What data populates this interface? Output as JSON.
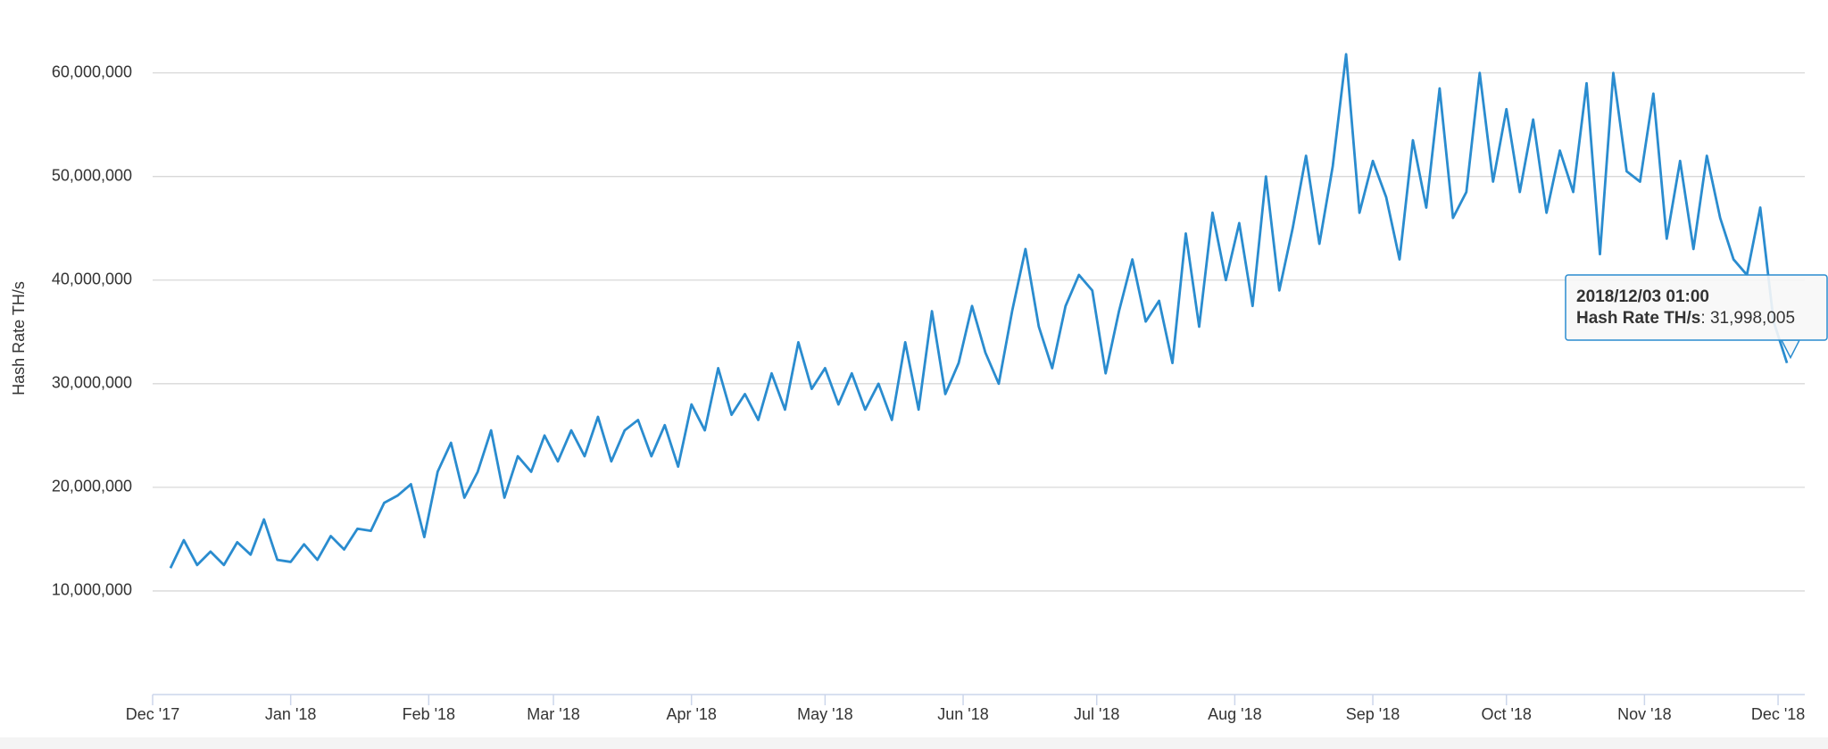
{
  "chart_data": {
    "type": "line",
    "y_label": "Hash Rate TH/s",
    "x": [
      "2017-12-05",
      "2017-12-08",
      "2017-12-11",
      "2017-12-14",
      "2017-12-17",
      "2017-12-20",
      "2017-12-23",
      "2017-12-26",
      "2017-12-29",
      "2018-01-01",
      "2018-01-04",
      "2018-01-07",
      "2018-01-10",
      "2018-01-13",
      "2018-01-16",
      "2018-01-19",
      "2018-01-22",
      "2018-01-25",
      "2018-01-28",
      "2018-01-31",
      "2018-02-03",
      "2018-02-06",
      "2018-02-09",
      "2018-02-12",
      "2018-02-15",
      "2018-02-18",
      "2018-02-21",
      "2018-02-24",
      "2018-02-27",
      "2018-03-02",
      "2018-03-05",
      "2018-03-08",
      "2018-03-11",
      "2018-03-14",
      "2018-03-17",
      "2018-03-20",
      "2018-03-23",
      "2018-03-26",
      "2018-03-29",
      "2018-04-01",
      "2018-04-04",
      "2018-04-07",
      "2018-04-10",
      "2018-04-13",
      "2018-04-16",
      "2018-04-19",
      "2018-04-22",
      "2018-04-25",
      "2018-04-28",
      "2018-05-01",
      "2018-05-04",
      "2018-05-07",
      "2018-05-10",
      "2018-05-13",
      "2018-05-16",
      "2018-05-19",
      "2018-05-22",
      "2018-05-25",
      "2018-05-28",
      "2018-05-31",
      "2018-06-03",
      "2018-06-06",
      "2018-06-09",
      "2018-06-12",
      "2018-06-15",
      "2018-06-18",
      "2018-06-21",
      "2018-06-24",
      "2018-06-27",
      "2018-06-30",
      "2018-07-03",
      "2018-07-06",
      "2018-07-09",
      "2018-07-12",
      "2018-07-15",
      "2018-07-18",
      "2018-07-21",
      "2018-07-24",
      "2018-07-27",
      "2018-07-30",
      "2018-08-02",
      "2018-08-05",
      "2018-08-08",
      "2018-08-11",
      "2018-08-14",
      "2018-08-17",
      "2018-08-20",
      "2018-08-23",
      "2018-08-26",
      "2018-08-29",
      "2018-09-01",
      "2018-09-04",
      "2018-09-07",
      "2018-09-10",
      "2018-09-13",
      "2018-09-16",
      "2018-09-19",
      "2018-09-22",
      "2018-09-25",
      "2018-09-28",
      "2018-10-01",
      "2018-10-04",
      "2018-10-07",
      "2018-10-10",
      "2018-10-13",
      "2018-10-16",
      "2018-10-19",
      "2018-10-22",
      "2018-10-25",
      "2018-10-28",
      "2018-10-31",
      "2018-11-03",
      "2018-11-06",
      "2018-11-09",
      "2018-11-12",
      "2018-11-15",
      "2018-11-18",
      "2018-11-21",
      "2018-11-24",
      "2018-11-27",
      "2018-11-30",
      "2018-12-03"
    ],
    "series": [
      {
        "name": "Hash Rate TH/s",
        "color": "#2a8ccf",
        "values": [
          12200000,
          14900000,
          12500000,
          13800000,
          12500000,
          14700000,
          13500000,
          16900000,
          13000000,
          12800000,
          14500000,
          13000000,
          15300000,
          14000000,
          16000000,
          15800000,
          18500000,
          19200000,
          20300000,
          15200000,
          21500000,
          24300000,
          19000000,
          21500000,
          25500000,
          19000000,
          23000000,
          21500000,
          25000000,
          22500000,
          25500000,
          23000000,
          26800000,
          22500000,
          25500000,
          26500000,
          23000000,
          26000000,
          22000000,
          28000000,
          25500000,
          31500000,
          27000000,
          29000000,
          26500000,
          31000000,
          27500000,
          34000000,
          29500000,
          31500000,
          28000000,
          31000000,
          27500000,
          30000000,
          26500000,
          34000000,
          27500000,
          37000000,
          29000000,
          32000000,
          37500000,
          33000000,
          30000000,
          37000000,
          43000000,
          35500000,
          31500000,
          37500000,
          40500000,
          39000000,
          31000000,
          37000000,
          42000000,
          36000000,
          38000000,
          32000000,
          44500000,
          35500000,
          46500000,
          40000000,
          45500000,
          37500000,
          50000000,
          39000000,
          45000000,
          52000000,
          43500000,
          51000000,
          61800000,
          46500000,
          51500000,
          48000000,
          42000000,
          53500000,
          47000000,
          58500000,
          46000000,
          48500000,
          60000000,
          49500000,
          56500000,
          48500000,
          55500000,
          46500000,
          52500000,
          48500000,
          59000000,
          42500000,
          60000000,
          50500000,
          49500000,
          58000000,
          44000000,
          51500000,
          43000000,
          52000000,
          46000000,
          42000000,
          40500000,
          47000000,
          36000000,
          31998005
        ]
      }
    ],
    "xlim": [
      "2017-12-01",
      "2018-12-07"
    ],
    "xticks": [
      {
        "value": "2017-12-01",
        "label": "Dec '17"
      },
      {
        "value": "2018-01-01",
        "label": "Jan '18"
      },
      {
        "value": "2018-02-01",
        "label": "Feb '18"
      },
      {
        "value": "2018-03-01",
        "label": "Mar '18"
      },
      {
        "value": "2018-04-01",
        "label": "Apr '18"
      },
      {
        "value": "2018-05-01",
        "label": "May '18"
      },
      {
        "value": "2018-06-01",
        "label": "Jun '18"
      },
      {
        "value": "2018-07-01",
        "label": "Jul '18"
      },
      {
        "value": "2018-08-01",
        "label": "Aug '18"
      },
      {
        "value": "2018-09-01",
        "label": "Sep '18"
      },
      {
        "value": "2018-10-01",
        "label": "Oct '18"
      },
      {
        "value": "2018-11-01",
        "label": "Nov '18"
      },
      {
        "value": "2018-12-01",
        "label": "Dec '18"
      }
    ],
    "ylim": [
      0,
      66000000
    ],
    "yticks": [
      {
        "value": 10000000,
        "label": "10,000,000"
      },
      {
        "value": 20000000,
        "label": "20,000,000"
      },
      {
        "value": 30000000,
        "label": "30,000,000"
      },
      {
        "value": 40000000,
        "label": "40,000,000"
      },
      {
        "value": 50000000,
        "label": "50,000,000"
      },
      {
        "value": 60000000,
        "label": "60,000,000"
      }
    ],
    "grid": true,
    "tooltip": {
      "label": "2018/12/03 01:00",
      "separator": ":",
      "value": 31998005,
      "value_label": "31,998,005"
    }
  }
}
